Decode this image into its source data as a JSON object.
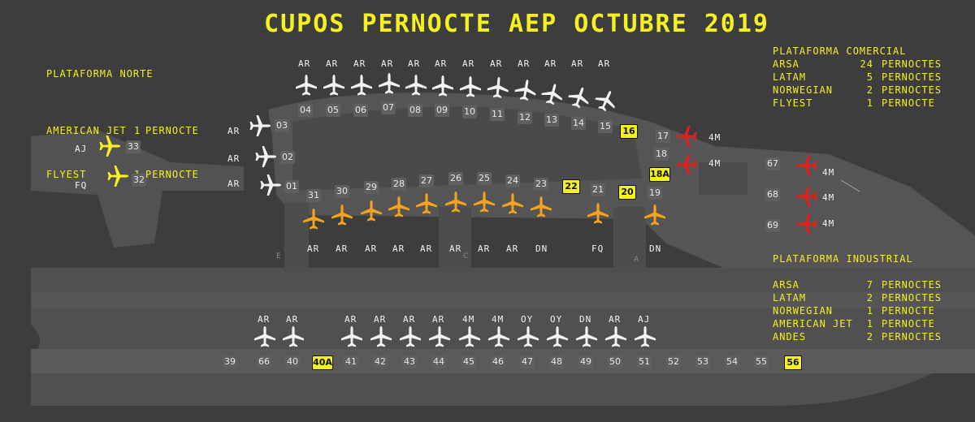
{
  "title": "CUPOS PERNOCTE AEP OCTUBRE 2019",
  "colors": {
    "bg": "#3d3d3d",
    "apron": "#525252",
    "apron2": "#5a5a5a",
    "yellow": "#f5f020",
    "orange": "#f5a31a",
    "red": "#e0201a",
    "white": "#f2f2f2"
  },
  "panels": {
    "norte": {
      "title": "PLATAFORMA NORTE",
      "rows": [
        {
          "name": "AMERICAN JET",
          "qty": "1",
          "unit": "PERNOCTE"
        },
        {
          "name": "FLYEST",
          "qty": "1",
          "unit": "PERNOCTE"
        }
      ]
    },
    "comercial": {
      "title": "PLATAFORMA COMERCIAL",
      "rows": [
        {
          "name": "ARSA",
          "qty": "24",
          "unit": "PERNOCTES"
        },
        {
          "name": "LATAM",
          "qty": "5",
          "unit": "PERNOCTES"
        },
        {
          "name": "NORWEGIAN",
          "qty": "2",
          "unit": "PERNOCTES"
        },
        {
          "name": "FLYEST",
          "qty": "1",
          "unit": "PERNOCTE"
        }
      ]
    },
    "industrial": {
      "title": "PLATAFORMA INDUSTRIAL",
      "rows": [
        {
          "name": "ARSA",
          "qty": "7",
          "unit": "PERNOCTES"
        },
        {
          "name": "LATAM",
          "qty": "2",
          "unit": "PERNOCTES"
        },
        {
          "name": "NORWEGIAN",
          "qty": "1",
          "unit": "PERNOCTE"
        },
        {
          "name": "AMERICAN JET",
          "qty": "1",
          "unit": "PERNOCTE"
        },
        {
          "name": "ANDES",
          "qty": "2",
          "unit": "PERNOCTES"
        }
      ]
    }
  },
  "zones": [
    "E",
    "C",
    "A"
  ],
  "stands": {
    "north": [
      {
        "num": "33",
        "op": "AJ",
        "color": "yellow"
      },
      {
        "num": "32",
        "op": "FQ",
        "color": "yellow"
      }
    ],
    "arc": [
      {
        "num": "04",
        "op": "AR",
        "color": "white"
      },
      {
        "num": "05",
        "op": "AR",
        "color": "white"
      },
      {
        "num": "06",
        "op": "AR",
        "color": "white"
      },
      {
        "num": "07",
        "op": "AR",
        "color": "white"
      },
      {
        "num": "08",
        "op": "AR",
        "color": "white"
      },
      {
        "num": "09",
        "op": "AR",
        "color": "white"
      },
      {
        "num": "10",
        "op": "AR",
        "color": "white"
      },
      {
        "num": "11",
        "op": "AR",
        "color": "white"
      },
      {
        "num": "12",
        "op": "AR",
        "color": "white"
      },
      {
        "num": "13",
        "op": "AR",
        "color": "white"
      },
      {
        "num": "14",
        "op": "AR",
        "color": "white"
      },
      {
        "num": "15",
        "op": "AR",
        "color": "white"
      },
      {
        "num": "16",
        "op": "",
        "color": "",
        "hl": true
      }
    ],
    "left": [
      {
        "num": "03",
        "op": "AR",
        "color": "white"
      },
      {
        "num": "02",
        "op": "AR",
        "color": "white"
      },
      {
        "num": "01",
        "op": "AR",
        "color": "white"
      }
    ],
    "right": [
      {
        "num": "17",
        "op": "4M",
        "color": "red"
      },
      {
        "num": "18",
        "op": "",
        "color": ""
      },
      {
        "num": "18A",
        "op": "4M",
        "color": "red",
        "hl": true
      }
    ],
    "far": [
      {
        "num": "67",
        "op": "4M",
        "color": "red"
      },
      {
        "num": "68",
        "op": "4M",
        "color": "red"
      },
      {
        "num": "69",
        "op": "4M",
        "color": "red"
      }
    ],
    "lower": [
      {
        "num": "31",
        "op": "AR",
        "color": "orange"
      },
      {
        "num": "30",
        "op": "AR",
        "color": "orange"
      },
      {
        "num": "29",
        "op": "AR",
        "color": "orange"
      },
      {
        "num": "28",
        "op": "AR",
        "color": "orange"
      },
      {
        "num": "27",
        "op": "AR",
        "color": "orange"
      },
      {
        "num": "26",
        "op": "AR",
        "color": "orange"
      },
      {
        "num": "25",
        "op": "AR",
        "color": "orange"
      },
      {
        "num": "24",
        "op": "AR",
        "color": "orange"
      },
      {
        "num": "23",
        "op": "DN",
        "color": "orange"
      },
      {
        "num": "22",
        "op": "",
        "color": "",
        "hl": true
      },
      {
        "num": "21",
        "op": "FQ",
        "color": "orange"
      },
      {
        "num": "20",
        "op": "",
        "color": "",
        "hl": true
      },
      {
        "num": "19",
        "op": "DN",
        "color": "orange"
      }
    ],
    "industrial": [
      {
        "num": "39",
        "op": "",
        "color": ""
      },
      {
        "num": "66",
        "op": "AR",
        "color": "white"
      },
      {
        "num": "40",
        "op": "AR",
        "color": "white"
      },
      {
        "num": "40A",
        "op": "",
        "color": "",
        "hl": true
      },
      {
        "num": "41",
        "op": "AR",
        "color": "white"
      },
      {
        "num": "42",
        "op": "AR",
        "color": "white"
      },
      {
        "num": "43",
        "op": "AR",
        "color": "white"
      },
      {
        "num": "44",
        "op": "AR",
        "color": "white"
      },
      {
        "num": "45",
        "op": "4M",
        "color": "white"
      },
      {
        "num": "46",
        "op": "4M",
        "color": "white"
      },
      {
        "num": "47",
        "op": "OY",
        "color": "white"
      },
      {
        "num": "48",
        "op": "OY",
        "color": "white"
      },
      {
        "num": "49",
        "op": "DN",
        "color": "white"
      },
      {
        "num": "50",
        "op": "AR",
        "color": "white"
      },
      {
        "num": "51",
        "op": "AJ",
        "color": "white"
      },
      {
        "num": "52",
        "op": "",
        "color": ""
      },
      {
        "num": "53",
        "op": "",
        "color": ""
      },
      {
        "num": "54",
        "op": "",
        "color": ""
      },
      {
        "num": "55",
        "op": "",
        "color": ""
      },
      {
        "num": "56",
        "op": "",
        "color": "",
        "hl": true
      }
    ]
  }
}
